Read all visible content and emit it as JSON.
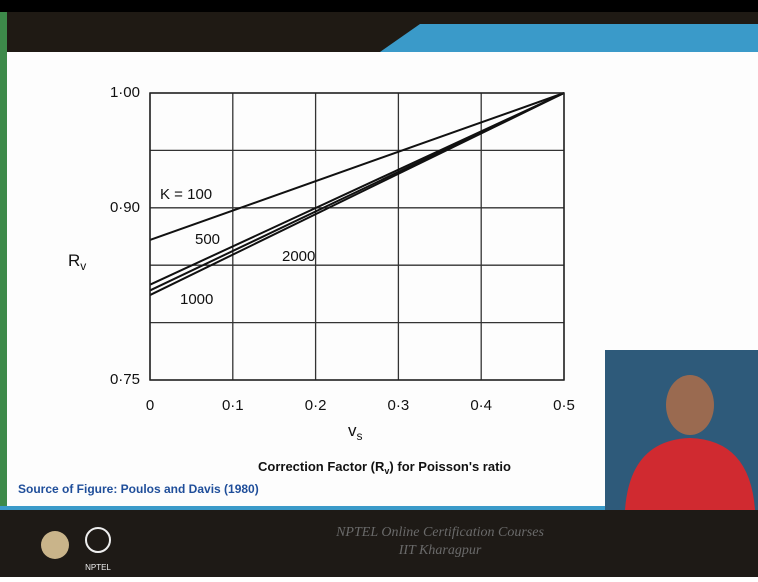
{
  "chart_data": {
    "type": "line",
    "xlabel": {
      "main": "v",
      "sub": "s"
    },
    "ylabel": {
      "main": "R",
      "sub": "v"
    },
    "xlim": [
      0,
      0.5
    ],
    "ylim": [
      0.75,
      1.0
    ],
    "xticks": [
      0,
      {
        "value": 0.1,
        "label": "0·1"
      },
      {
        "value": 0.2,
        "label": "0·2"
      },
      {
        "value": 0.3,
        "label": "0·3"
      },
      {
        "value": 0.4,
        "label": "0·4"
      },
      {
        "value": 0.5,
        "label": "0·5"
      }
    ],
    "yticks": [
      {
        "value": 0.75,
        "label": "0·75"
      },
      {
        "value": 0.9,
        "label": "0·90"
      },
      {
        "value": 1.0,
        "label": "1·00"
      }
    ],
    "ygrid_minor": [
      0.8,
      0.85,
      0.95
    ],
    "grid": true,
    "x": [
      0,
      0.5
    ],
    "series": [
      {
        "name": "K = 100",
        "color": "#111111",
        "values": [
          0.872,
          1.0
        ]
      },
      {
        "name": "500",
        "color": "#111111",
        "values": [
          0.833,
          1.0
        ]
      },
      {
        "name": "2000",
        "color": "#111111",
        "values": [
          0.828,
          1.0
        ]
      },
      {
        "name": "1000",
        "color": "#111111",
        "values": [
          0.824,
          1.0
        ]
      }
    ]
  },
  "slide": {
    "caption": {
      "before": "Correction Factor (R",
      "sub": "v",
      "after": ") for Poisson's ratio"
    },
    "source": "Source of Figure: Poulos and Davis (1980)",
    "footer": [
      "NPTEL Online Certification Courses",
      "IIT Kharagpur"
    ],
    "logo": "NPTEL"
  }
}
